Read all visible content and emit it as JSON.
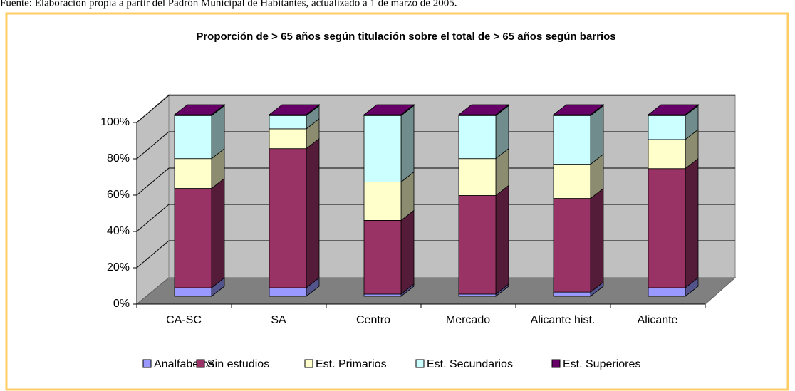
{
  "source": "Fuente: Elaboración propia a partir del Padrón Municipal de Habitantes, actualizado a 1 de marzo de 2005.",
  "chart_data": {
    "type": "bar3d-stacked-100",
    "title": "Proporción de > 65 años según titulación sobre el total de > 65 años según barrios",
    "categories": [
      "CA-SC",
      "SA",
      "Centro",
      "Mercado",
      "Alicante hist.",
      "Alicante"
    ],
    "series": [
      {
        "name": "Analfabetos",
        "color": "#9999FF",
        "values": [
          4.7,
          4.7,
          1.2,
          1.2,
          2.3,
          4.7
        ]
      },
      {
        "name": "Sin estudios",
        "color": "#993366",
        "values": [
          54.7,
          76.6,
          40.6,
          54.3,
          51.6,
          65.6
        ]
      },
      {
        "name": "Est. Primarios",
        "color": "#FFFFCC",
        "values": [
          16.4,
          10.9,
          21.1,
          20.3,
          18.8,
          16.0
        ]
      },
      {
        "name": "Est. Secundarios",
        "color": "#CCFFFF",
        "values": [
          23.7,
          7.3,
          36.6,
          23.7,
          26.8,
          13.2
        ]
      },
      {
        "name": "Est. Superiores",
        "color": "#660066",
        "values": [
          0.5,
          0.5,
          0.5,
          0.5,
          0.5,
          0.5
        ]
      }
    ],
    "ylim": [
      0,
      100
    ],
    "yticks": [
      {
        "value": 0,
        "label": "0%"
      },
      {
        "value": 20,
        "label": "20%"
      },
      {
        "value": 40,
        "label": "40%"
      },
      {
        "value": 60,
        "label": "60%"
      },
      {
        "value": 80,
        "label": "80%"
      },
      {
        "value": 100,
        "label": "100%"
      }
    ],
    "grid": true,
    "legend": "bottom"
  }
}
